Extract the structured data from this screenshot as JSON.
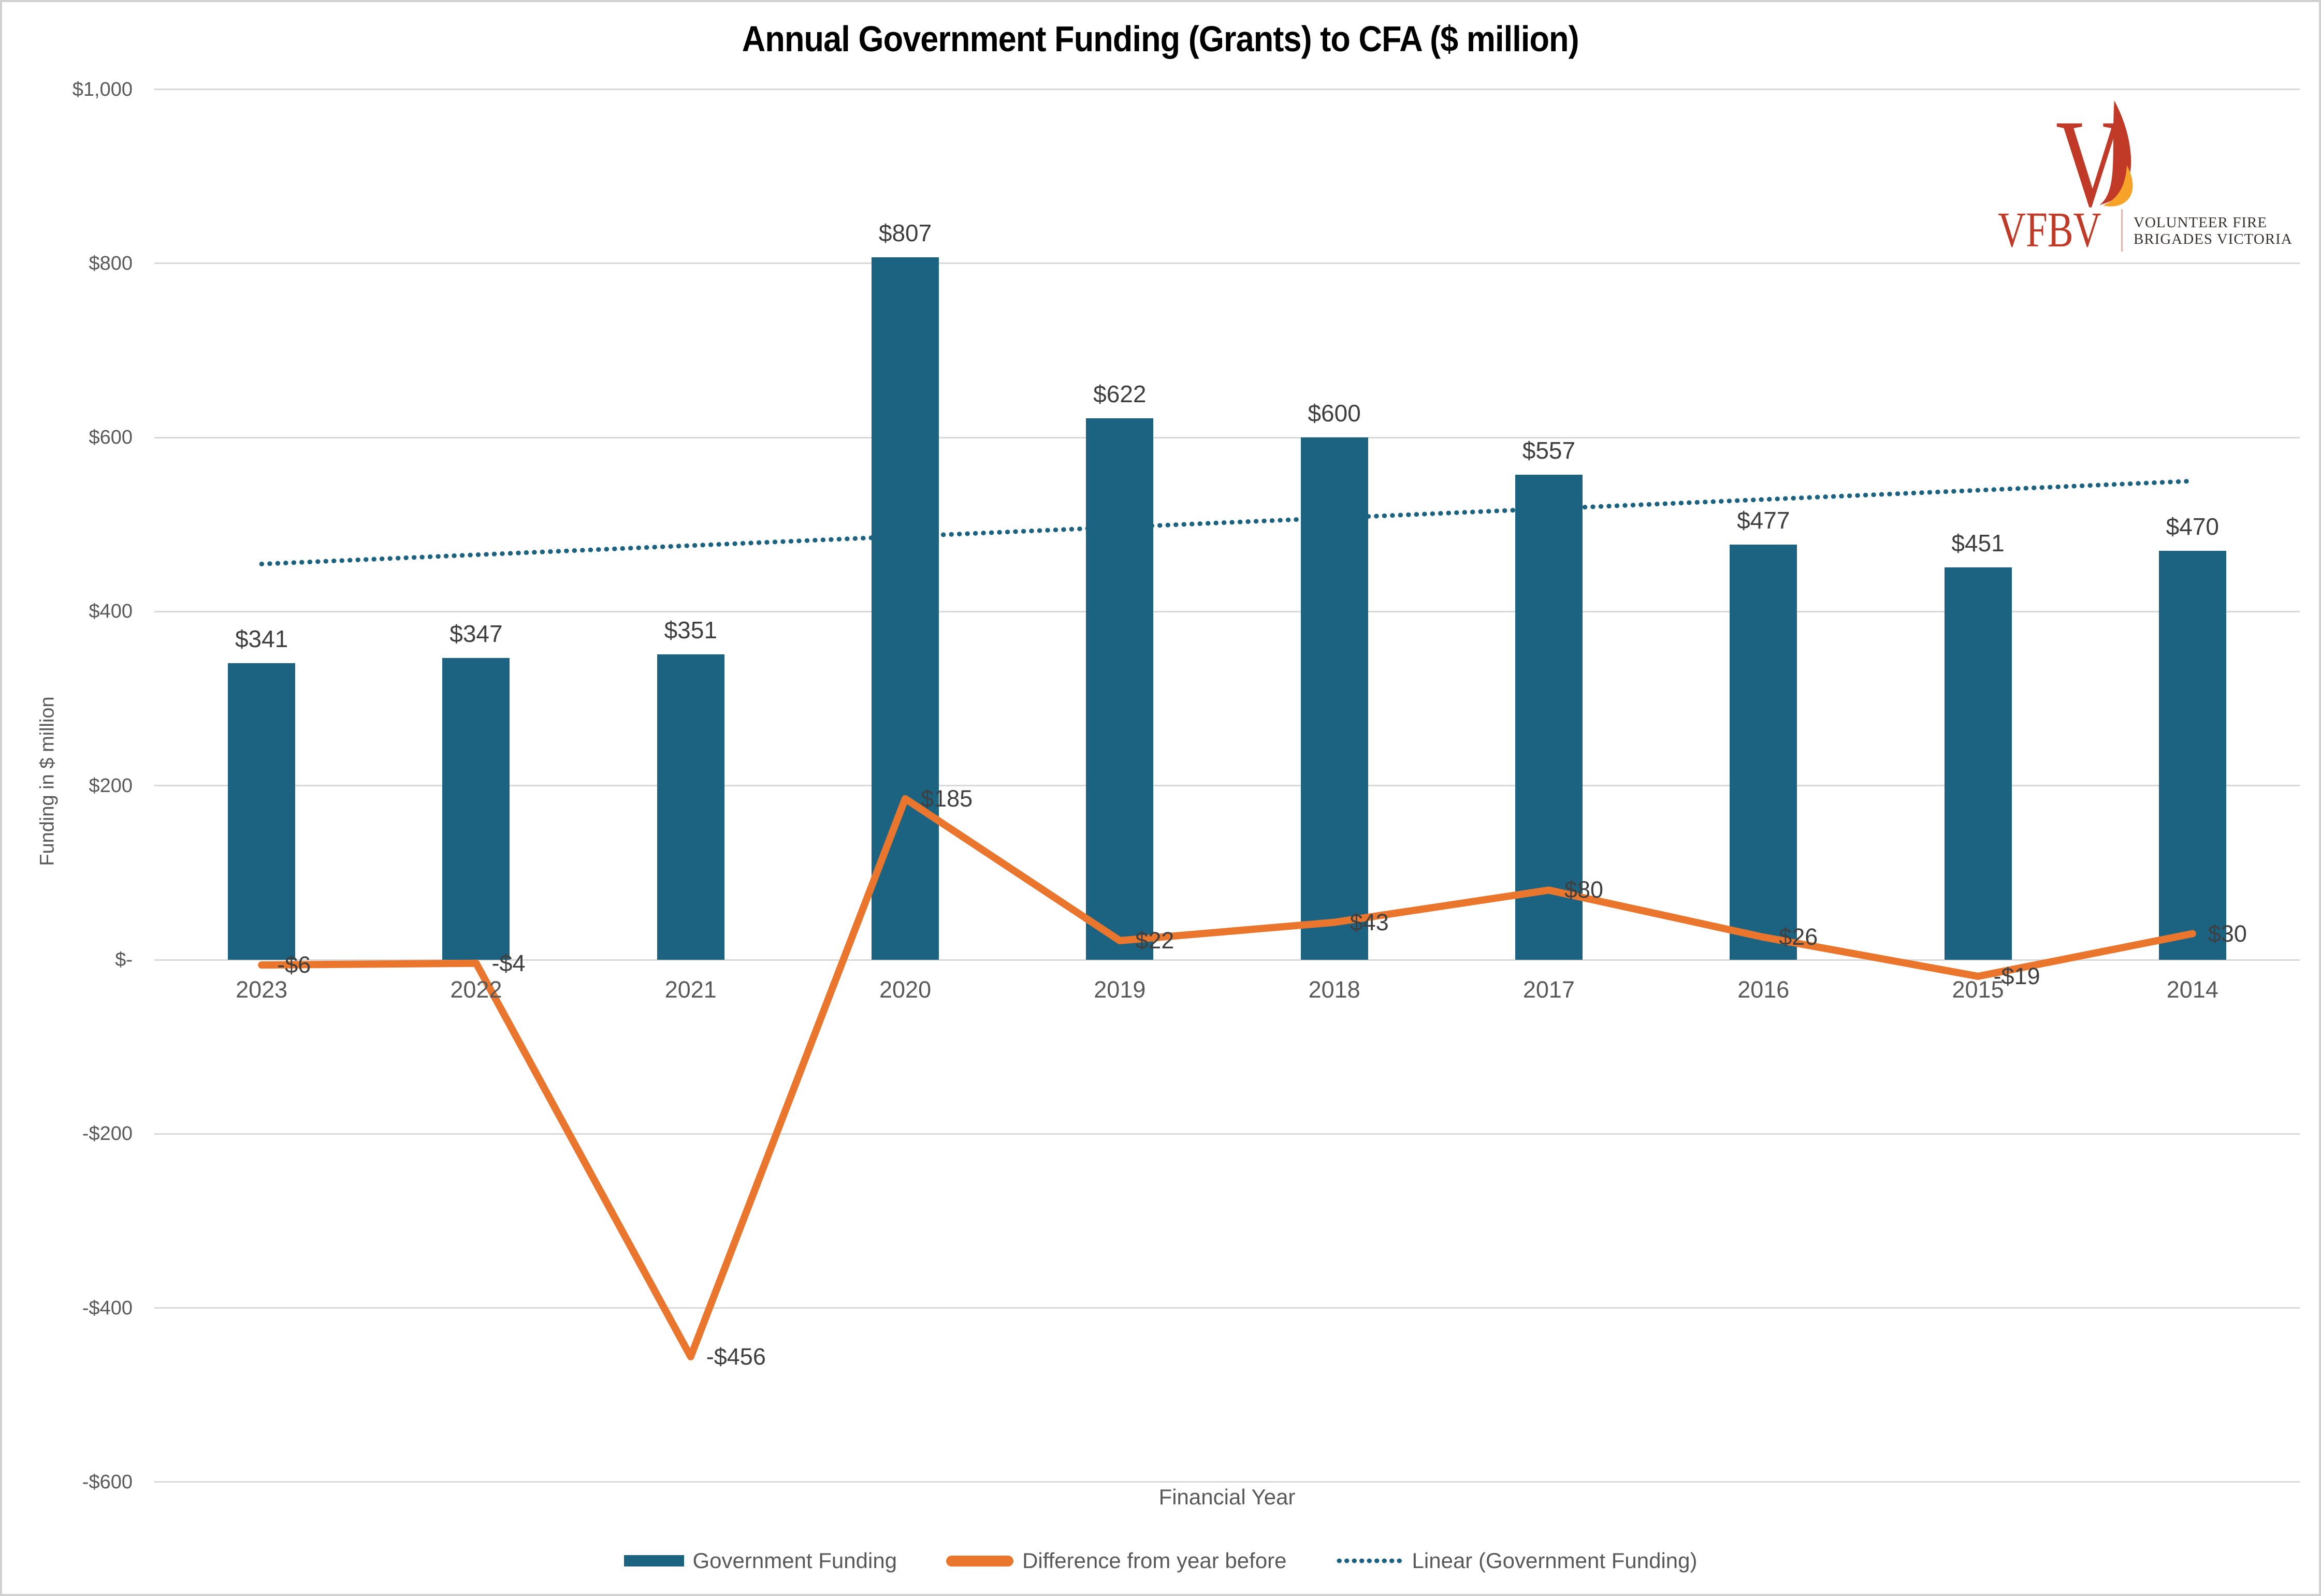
{
  "title": "Annual Government Funding (Grants) to CFA ($ million)",
  "logo": {
    "acronym": "VFBV",
    "name_line1": "VOLUNTEER FIRE",
    "name_line2": "BRIGADES VICTORIA"
  },
  "colors": {
    "bar": "#1c6381",
    "line": "#e9762c",
    "trend": "#1c6381",
    "grid": "#d9d9d9",
    "axis_text": "#595959",
    "data_label": "#3f3f3f",
    "logo_red": "#c13a27",
    "logo_amber": "#f7a329",
    "logo_divider": "#e3b4ab",
    "logo_text": "#38332e"
  },
  "chart_data": {
    "type": "combo",
    "title": "Annual Government Funding (Grants) to CFA ($ million)",
    "categories": [
      "2023",
      "2022",
      "2021",
      "2020",
      "2019",
      "2018",
      "2017",
      "2016",
      "2015",
      "2014"
    ],
    "series": [
      {
        "name": "Government Funding",
        "type": "bar",
        "values": [
          341,
          347,
          351,
          807,
          622,
          600,
          557,
          477,
          451,
          470
        ],
        "labels": [
          "$341",
          "$347",
          "$351",
          "$807",
          "$622",
          "$600",
          "$557",
          "$477",
          "$451",
          "$470"
        ]
      },
      {
        "name": "Difference from year before",
        "type": "line",
        "values": [
          -6,
          -4,
          -456,
          185,
          22,
          43,
          80,
          26,
          -19,
          30
        ],
        "labels": [
          "-$6",
          "-$4",
          "-$456",
          "$185",
          "$22",
          "$43",
          "$80",
          "$26",
          "-$19",
          "$30"
        ]
      },
      {
        "name": "Linear (Government Funding)",
        "type": "trendline",
        "style": "dotted"
      }
    ],
    "xlabel": "Financial Year",
    "ylabel": "Funding in $ million",
    "ylim": [
      -600,
      1000
    ],
    "yticks": [
      {
        "value": 1000,
        "label": "$1,000"
      },
      {
        "value": 800,
        "label": "$800"
      },
      {
        "value": 600,
        "label": "$600"
      },
      {
        "value": 400,
        "label": "$400"
      },
      {
        "value": 200,
        "label": "$200"
      },
      {
        "value": 0,
        "label": "$-"
      },
      {
        "value": -200,
        "label": "-$200"
      },
      {
        "value": -400,
        "label": "-$400"
      },
      {
        "value": -600,
        "label": "-$600"
      }
    ],
    "grid": true,
    "legend_position": "bottom"
  }
}
